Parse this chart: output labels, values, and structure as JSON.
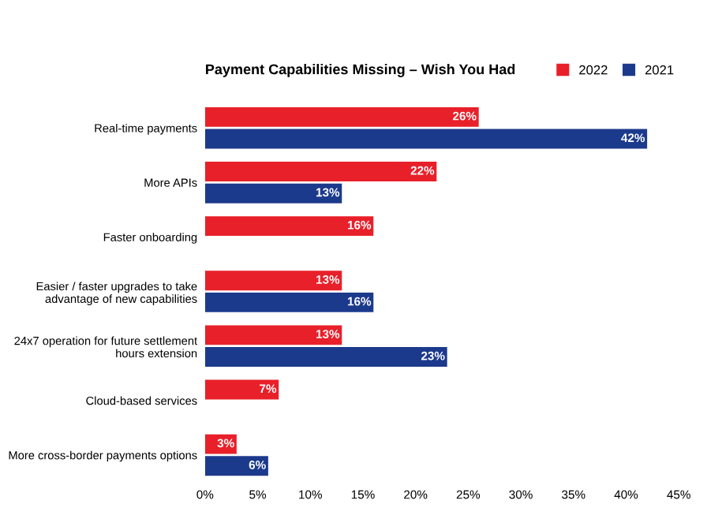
{
  "chart_data": {
    "type": "bar",
    "orientation": "horizontal",
    "title": "Payment Capabilities Missing – Wish You Had",
    "categories": [
      "Real-time payments",
      "More APIs",
      "Faster onboarding",
      "Easier / faster upgrades to take advantage of new capabilities",
      "24x7 operation for future settlement hours extension",
      "Cloud-based services",
      "More cross-border payments options"
    ],
    "series": [
      {
        "name": "2022",
        "color": "#e8202a",
        "values": [
          26,
          22,
          16,
          13,
          13,
          7,
          3
        ],
        "value_labels": [
          "26%",
          "22%",
          "16%",
          "13%",
          "13%",
          "7%",
          "3%"
        ]
      },
      {
        "name": "2021",
        "color": "#1c3a8c",
        "values": [
          42,
          13,
          null,
          16,
          23,
          null,
          6
        ],
        "value_labels": [
          "42%",
          "13%",
          null,
          "16%",
          "23%",
          null,
          "6%"
        ]
      }
    ],
    "xlim": [
      0,
      45
    ],
    "xticks": [
      {
        "value": 0,
        "label": "0%"
      },
      {
        "value": 5,
        "label": "5%"
      },
      {
        "value": 10,
        "label": "10%"
      },
      {
        "value": 15,
        "label": "15%"
      },
      {
        "value": 20,
        "label": "20%"
      },
      {
        "value": 25,
        "label": "25%"
      },
      {
        "value": 30,
        "label": "30%"
      },
      {
        "value": 35,
        "label": "35%"
      },
      {
        "value": 40,
        "label": "40%"
      },
      {
        "value": 45,
        "label": "45%"
      }
    ],
    "grid": false,
    "legend": "top right"
  }
}
